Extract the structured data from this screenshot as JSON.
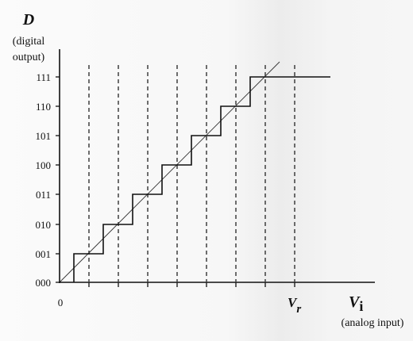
{
  "y_axis": {
    "title": "D",
    "subtitle_line1": "(digital",
    "subtitle_line2": "output)",
    "ticks": [
      "000",
      "001",
      "010",
      "011",
      "100",
      "101",
      "110",
      "111"
    ]
  },
  "x_axis": {
    "origin_label": "0",
    "vr_label": "V",
    "vr_subscript": "r",
    "title": "V",
    "title_subscript": "i",
    "subtitle": "(analog input)"
  }
}
